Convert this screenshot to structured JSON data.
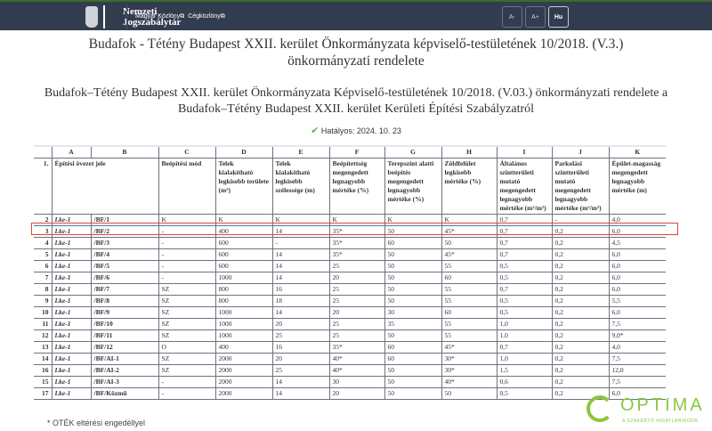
{
  "header": {
    "logo_line1": "Nemzeti",
    "logo_line2": "Jogszabálytár",
    "links": [
      "Magyar Közlöny",
      "Cégközlöny"
    ],
    "link_icon": "external-link-icon",
    "buttons": [
      "A-",
      "A+",
      "Hu"
    ],
    "active_button": "Hu"
  },
  "title": "Budafok - Tétény Budapest XXII. kerület Önkormányzata képviselő-testületének 10/2018. (V.3.) önkormányzati rendelete",
  "subtitle": "Budafok–Tétény Budapest XXII. kerület Önkormányzata Képviselő-testületének 10/2018. (V.03.) önkormányzati rendelete a Budafok–Tétény Budapest XXII. kerület Kerületi Építési Szabályzatról",
  "status": {
    "icon": "check-icon",
    "text": "Hatályos: 2024. 10. 23",
    "color": "#5cb85c"
  },
  "table": {
    "letters": [
      "",
      "A",
      "B",
      "C",
      "D",
      "E",
      "F",
      "G",
      "H",
      "I",
      "J",
      "K"
    ],
    "header": {
      "num": "1.",
      "cols": [
        "Építési övezet jele",
        "Beépítési mód",
        "Telek kialakítható legkisebb területe (m²)",
        "Telek kialakítható legkisebb szélessége (m)",
        "Beépítettség megengedett legnagyobb mértéke (%)",
        "Terepszint alatti beépítés megengedett legnagyobb mértéke (%)",
        "Zöldfelület legkisebb mértéke (%)",
        "Általános szintterületi mutató megengedett legnagyobb mértéke (m²/m²)",
        "Parkolási szintterületi mutató megengedett legnagyobb mértéke (m²/m²)",
        "Épület-magasság megengedett legnagyobb mértéke (m)"
      ]
    },
    "rows": [
      [
        "2",
        "Lke-1",
        "/BF/1",
        "K",
        "K",
        "K",
        "K",
        "K",
        "K",
        "0,7",
        "-",
        "4,0"
      ],
      [
        "3",
        "Lke-1",
        "/BF/2",
        "-",
        "400",
        "14",
        "35*",
        "50",
        "45*",
        "0,7",
        "0,2",
        "6,0"
      ],
      [
        "4",
        "Lke-1",
        "/BF/3",
        "-",
        "600",
        "-",
        "35*",
        "60",
        "50",
        "0,7",
        "0,2",
        "4,5"
      ],
      [
        "5",
        "Lke-1",
        "/BF/4",
        "-",
        "600",
        "14",
        "35*",
        "50",
        "45*",
        "0,7",
        "0,2",
        "6,0"
      ],
      [
        "6",
        "Lke-1",
        "/BF/5",
        "-",
        "600",
        "14",
        "25",
        "50",
        "55",
        "0,5",
        "0,2",
        "6,0"
      ],
      [
        "7",
        "Lke-1",
        "/BF/6",
        "-",
        "1000",
        "14",
        "20",
        "50",
        "60",
        "0,5",
        "0,2",
        "6,0"
      ],
      [
        "8",
        "Lke-1",
        "/BF/7",
        "SZ",
        "800",
        "16",
        "25",
        "50",
        "55",
        "0,7",
        "0,2",
        "6,0"
      ],
      [
        "9",
        "Lke-1",
        "/BF/8",
        "SZ",
        "800",
        "18",
        "25",
        "50",
        "55",
        "0,5",
        "0,2",
        "5,5"
      ],
      [
        "10",
        "Lke-1",
        "/BF/9",
        "SZ",
        "1000",
        "14",
        "20",
        "30",
        "60",
        "0,5",
        "0,2",
        "6,0"
      ],
      [
        "11",
        "Lke-1",
        "/BF/10",
        "SZ",
        "1000",
        "20",
        "25",
        "35",
        "55",
        "1,0",
        "0,2",
        "7,5"
      ],
      [
        "12",
        "Lke-1",
        "/BF/11",
        "SZ",
        "1000",
        "25",
        "25",
        "50",
        "55",
        "1,0",
        "0,2",
        "9,0*"
      ],
      [
        "13",
        "Lke-1",
        "/BF/12",
        "O",
        "400",
        "16",
        "35*",
        "60",
        "45*",
        "0,7",
        "0,2",
        "4,0"
      ],
      [
        "14",
        "Lke-1",
        "/BF/AI-1",
        "SZ",
        "2000",
        "20",
        "40*",
        "60",
        "30*",
        "1,0",
        "0,2",
        "7,5"
      ],
      [
        "16",
        "Lke-1",
        "/BF/AI-2",
        "SZ",
        "2000",
        "25",
        "40*",
        "50",
        "30*",
        "1,5",
        "0,2",
        "12,0"
      ],
      [
        "15",
        "Lke-1",
        "/BF/AI-3",
        "-",
        "2000",
        "14",
        "30",
        "50",
        "40*",
        "0,6",
        "0,2",
        "7,5"
      ],
      [
        "17",
        "Lke-1",
        "/BF/Közmű",
        "-",
        "2000",
        "14",
        "20",
        "50",
        "50",
        "0,5",
        "0,2",
        "6,0"
      ]
    ],
    "highlighted_row": "3",
    "highlight_color": "#e0453a"
  },
  "footnote": "* OTÉK eltérési engedéllyel",
  "watermark": {
    "name": "OPTIMA",
    "tagline": "A SZAKÉRTŐ INGATLANIRODA",
    "color": "#8cc63f"
  }
}
